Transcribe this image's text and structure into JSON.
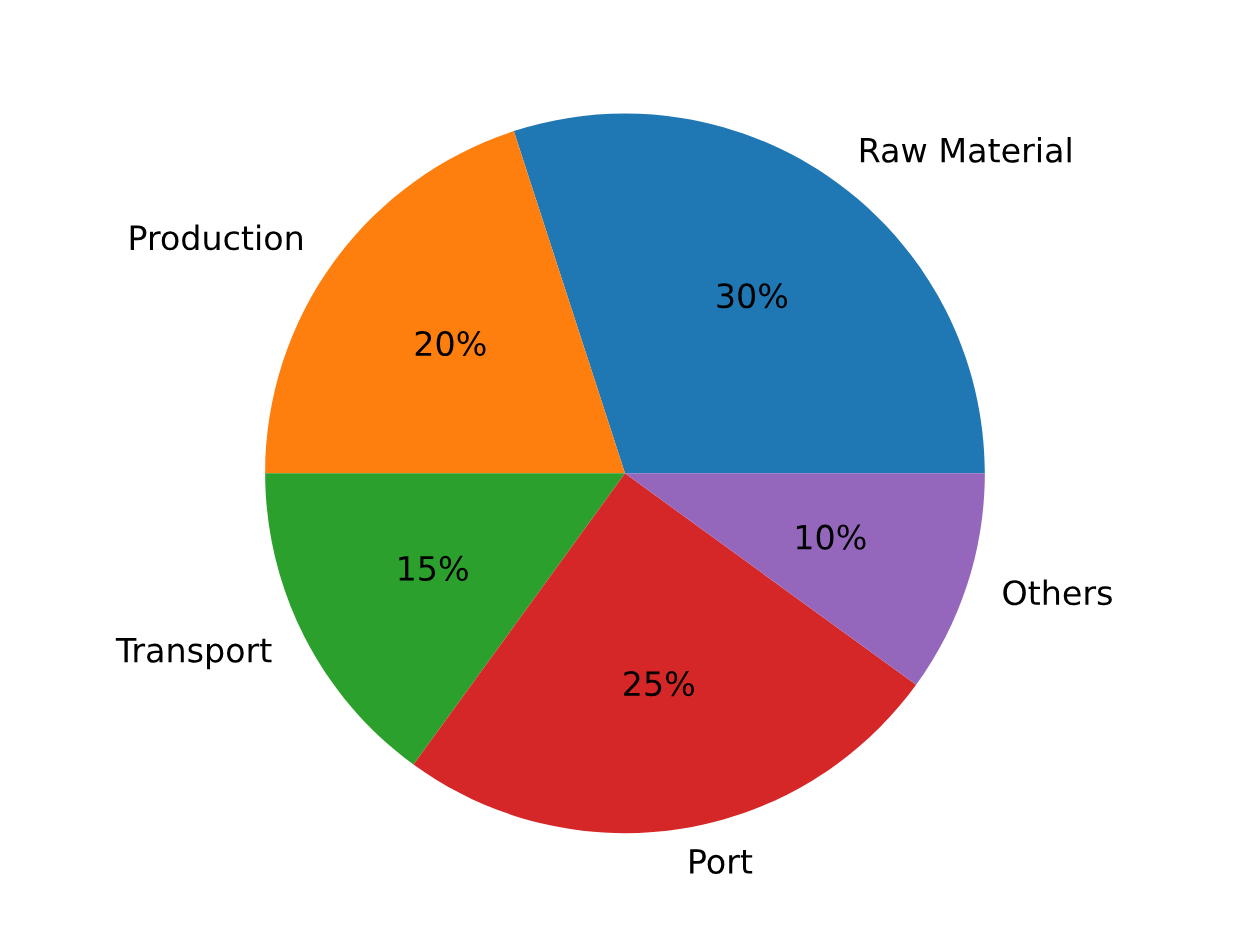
{
  "chart_data": {
    "type": "pie",
    "categories": [
      "Raw Material",
      "Production",
      "Transport",
      "Port",
      "Others"
    ],
    "values": [
      30,
      20,
      15,
      25,
      10
    ],
    "value_labels": [
      "30%",
      "20%",
      "15%",
      "25%",
      "10%"
    ],
    "colors": [
      "#1f77b4",
      "#ff7f0e",
      "#2ca02c",
      "#d62728",
      "#9467bd"
    ]
  }
}
